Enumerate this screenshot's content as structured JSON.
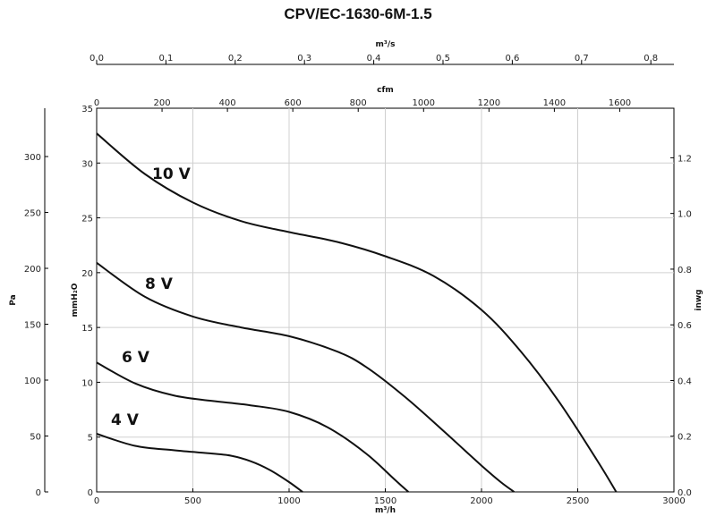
{
  "chart_data": {
    "type": "line",
    "title": "CPV/EC-1630-6M-1.5",
    "xlabel": "m³/h",
    "ylabel": "mmH₂O",
    "xlim": [
      0,
      3000
    ],
    "ylim": [
      0,
      35
    ],
    "grid": true,
    "x_ticks": [
      "0",
      "500",
      "1000",
      "1500",
      "2000",
      "2500",
      "3000"
    ],
    "y_ticks": [
      "0",
      "5",
      "10",
      "15",
      "20",
      "25",
      "30",
      "35"
    ],
    "secondary_axes": {
      "top_outer": {
        "label": "m³/s",
        "ticks": [
          "0.0",
          "0.1",
          "0.2",
          "0.3",
          "0.4",
          "0.5",
          "0.6",
          "0.7",
          "0.8"
        ]
      },
      "top_inner": {
        "label": "cfm",
        "ticks": [
          "0",
          "200",
          "400",
          "600",
          "800",
          "1000",
          "1200",
          "1400",
          "1600"
        ]
      },
      "left_outer": {
        "label": "Pa",
        "ticks": [
          "0",
          "50",
          "100",
          "150",
          "200",
          "250",
          "300"
        ]
      },
      "right": {
        "label": "inwg",
        "ticks": [
          "0.0",
          "0.2",
          "0.4",
          "0.6",
          "0.8",
          "1.0",
          "1.2"
        ]
      }
    },
    "series": [
      {
        "name": "10 V",
        "x": [
          0,
          250,
          500,
          750,
          1000,
          1250,
          1500,
          1750,
          2000,
          2200,
          2400,
          2600,
          2700
        ],
        "y": [
          32.7,
          29.0,
          26.4,
          24.7,
          23.7,
          22.8,
          21.5,
          19.7,
          16.6,
          12.9,
          8.3,
          2.9,
          0
        ]
      },
      {
        "name": "8 V",
        "x": [
          0,
          250,
          500,
          750,
          1000,
          1250,
          1400,
          1600,
          1800,
          2000,
          2100,
          2170
        ],
        "y": [
          20.9,
          17.8,
          16.0,
          15.0,
          14.2,
          12.8,
          11.4,
          8.7,
          5.6,
          2.4,
          0.9,
          0
        ]
      },
      {
        "name": "6 V",
        "x": [
          0,
          200,
          400,
          600,
          800,
          1000,
          1200,
          1400,
          1550,
          1620
        ],
        "y": [
          11.8,
          9.9,
          8.8,
          8.3,
          7.9,
          7.3,
          5.9,
          3.5,
          1.1,
          0
        ]
      },
      {
        "name": "4 V",
        "x": [
          0,
          200,
          400,
          600,
          700,
          800,
          900,
          1000,
          1070
        ],
        "y": [
          5.3,
          4.2,
          3.8,
          3.5,
          3.3,
          2.8,
          2.0,
          0.9,
          0
        ]
      }
    ]
  }
}
